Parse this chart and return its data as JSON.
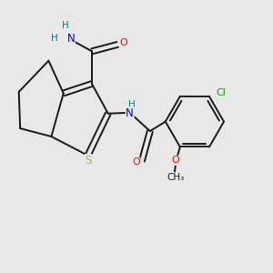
{
  "bg_color": "#e8e8e8",
  "bond_color": "#1a1a1a",
  "atom_colors": {
    "S": "#b8b800",
    "O": "#ff0000",
    "N": "#0000ee",
    "Cl": "#00aa00",
    "H": "#008080",
    "C": "#1a1a1a"
  },
  "figsize": [
    3.0,
    3.0
  ],
  "dpi": 100,
  "lw": 1.4
}
